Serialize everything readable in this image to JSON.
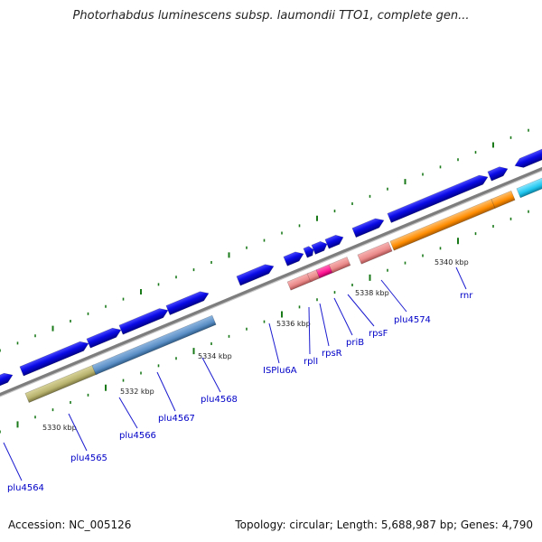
{
  "title": "Photorhabdus luminescens subsp. laumondii TTO1, complete gen...",
  "footer": {
    "accession": "Accession: NC_005126",
    "summary": "Topology: circular; Length: 5,688,987 bp; Genes: 4,790"
  },
  "kbp_labels": [
    "5330 kbp",
    "5332 kbp",
    "5334 kbp",
    "5336 kbp",
    "5338 kbp",
    "5340 kbp"
  ],
  "gene_labels": [
    "plu4564",
    "plu4565",
    "plu4566",
    "plu4567",
    "plu4568",
    "ISPlu6A",
    "rplI",
    "rpsR",
    "priB",
    "rpsF",
    "plu4574",
    "rnr"
  ],
  "colors": {
    "cds": "#0a0ae6",
    "backbone": "#888888",
    "tick": "#1a7a1a",
    "olive": "#b9b36f",
    "steel": "#5b8fc6",
    "salmon": "#eb8a8a",
    "magenta": "#ff1493",
    "orange": "#ff8c00",
    "cyan": "#22c8f0",
    "label": "#0000c8"
  }
}
